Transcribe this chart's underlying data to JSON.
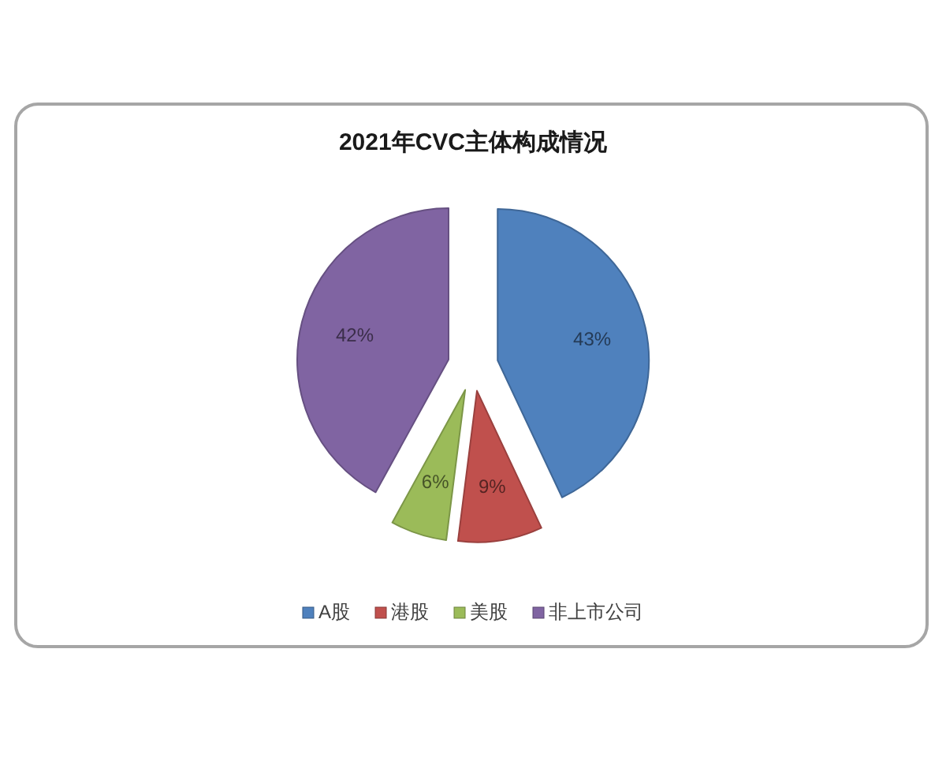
{
  "chart_data": {
    "type": "pie",
    "title": "2021年CVC主体构成情况",
    "categories": [
      "A股",
      "港股",
      "美股",
      "非上市公司"
    ],
    "values": [
      43,
      9,
      6,
      42
    ],
    "colors": [
      "#4f81bd",
      "#c0504d",
      "#9bbb59",
      "#8064a2"
    ],
    "value_labels": [
      "43%",
      "9%",
      "6%",
      "42%"
    ],
    "legend": "bottom"
  }
}
